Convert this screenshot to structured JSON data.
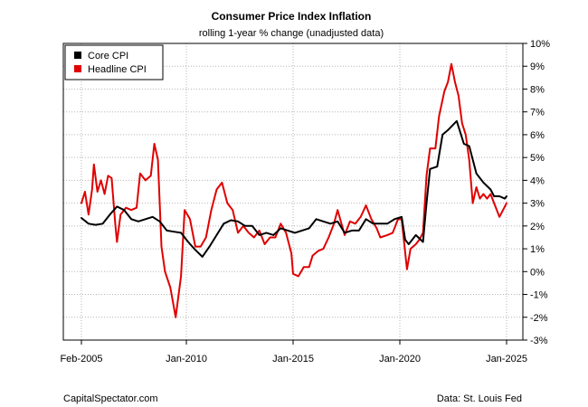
{
  "chart_data": {
    "type": "line",
    "title": "Consumer Price Index Inflation",
    "subtitle": "rolling 1-year % change (unadjusted data)",
    "xlabel": "",
    "ylabel": "",
    "x_range": [
      "2005-02",
      "2025-01"
    ],
    "ylim": [
      -3,
      10
    ],
    "grid": true,
    "legend_position": "top-left",
    "x_ticks": [
      {
        "date": "2005-02",
        "label": "Feb-2005"
      },
      {
        "date": "2010-01",
        "label": "Jan-2010"
      },
      {
        "date": "2015-01",
        "label": "Jan-2015"
      },
      {
        "date": "2020-01",
        "label": "Jan-2020"
      },
      {
        "date": "2025-01",
        "label": "Jan-2025"
      }
    ],
    "y_ticks": [
      {
        "value": -3,
        "label": "-3%"
      },
      {
        "value": -2,
        "label": "-2%"
      },
      {
        "value": -1,
        "label": "-1%"
      },
      {
        "value": 0,
        "label": "0%"
      },
      {
        "value": 1,
        "label": "1%"
      },
      {
        "value": 2,
        "label": "2%"
      },
      {
        "value": 3,
        "label": "3%"
      },
      {
        "value": 4,
        "label": "4%"
      },
      {
        "value": 5,
        "label": "5%"
      },
      {
        "value": 6,
        "label": "6%"
      },
      {
        "value": 7,
        "label": "7%"
      },
      {
        "value": 8,
        "label": "8%"
      },
      {
        "value": 9,
        "label": "9%"
      },
      {
        "value": 10,
        "label": "10%"
      }
    ],
    "series": [
      {
        "name": "Core CPI",
        "color": "#000000",
        "points": [
          [
            "2005-02",
            2.35
          ],
          [
            "2005-06",
            2.1
          ],
          [
            "2005-10",
            2.05
          ],
          [
            "2006-02",
            2.1
          ],
          [
            "2006-06",
            2.5
          ],
          [
            "2006-10",
            2.85
          ],
          [
            "2007-02",
            2.7
          ],
          [
            "2007-06",
            2.3
          ],
          [
            "2007-10",
            2.2
          ],
          [
            "2008-02",
            2.3
          ],
          [
            "2008-06",
            2.4
          ],
          [
            "2008-10",
            2.2
          ],
          [
            "2009-02",
            1.8
          ],
          [
            "2009-06",
            1.75
          ],
          [
            "2009-10",
            1.7
          ],
          [
            "2010-02",
            1.3
          ],
          [
            "2010-06",
            0.95
          ],
          [
            "2010-10",
            0.65
          ],
          [
            "2011-02",
            1.1
          ],
          [
            "2011-06",
            1.6
          ],
          [
            "2011-10",
            2.1
          ],
          [
            "2012-02",
            2.25
          ],
          [
            "2012-06",
            2.2
          ],
          [
            "2012-10",
            2.0
          ],
          [
            "2013-02",
            2.0
          ],
          [
            "2013-06",
            1.6
          ],
          [
            "2013-10",
            1.7
          ],
          [
            "2014-02",
            1.6
          ],
          [
            "2014-06",
            1.9
          ],
          [
            "2014-10",
            1.8
          ],
          [
            "2015-02",
            1.7
          ],
          [
            "2015-06",
            1.8
          ],
          [
            "2015-10",
            1.9
          ],
          [
            "2016-02",
            2.3
          ],
          [
            "2016-06",
            2.2
          ],
          [
            "2016-10",
            2.1
          ],
          [
            "2017-02",
            2.2
          ],
          [
            "2017-06",
            1.7
          ],
          [
            "2017-10",
            1.8
          ],
          [
            "2018-02",
            1.8
          ],
          [
            "2018-06",
            2.3
          ],
          [
            "2018-10",
            2.1
          ],
          [
            "2019-02",
            2.1
          ],
          [
            "2019-06",
            2.1
          ],
          [
            "2019-10",
            2.3
          ],
          [
            "2020-02",
            2.4
          ],
          [
            "2020-04",
            1.4
          ],
          [
            "2020-06",
            1.2
          ],
          [
            "2020-10",
            1.6
          ],
          [
            "2021-02",
            1.3
          ],
          [
            "2021-04",
            3.0
          ],
          [
            "2021-06",
            4.5
          ],
          [
            "2021-10",
            4.6
          ],
          [
            "2022-01",
            6.0
          ],
          [
            "2022-04",
            6.2
          ],
          [
            "2022-09",
            6.6
          ],
          [
            "2023-01",
            5.6
          ],
          [
            "2023-04",
            5.5
          ],
          [
            "2023-08",
            4.3
          ],
          [
            "2023-12",
            3.9
          ],
          [
            "2024-04",
            3.6
          ],
          [
            "2024-06",
            3.3
          ],
          [
            "2024-09",
            3.3
          ],
          [
            "2024-12",
            3.2
          ],
          [
            "2025-01",
            3.3
          ]
        ]
      },
      {
        "name": "Headline CPI",
        "color": "#e00000",
        "points": [
          [
            "2005-02",
            3.0
          ],
          [
            "2005-04",
            3.5
          ],
          [
            "2005-06",
            2.5
          ],
          [
            "2005-08",
            3.6
          ],
          [
            "2005-09",
            4.7
          ],
          [
            "2005-11",
            3.5
          ],
          [
            "2006-01",
            4.0
          ],
          [
            "2006-03",
            3.4
          ],
          [
            "2006-05",
            4.2
          ],
          [
            "2006-07",
            4.1
          ],
          [
            "2006-09",
            2.1
          ],
          [
            "2006-10",
            1.3
          ],
          [
            "2006-12",
            2.5
          ],
          [
            "2007-03",
            2.8
          ],
          [
            "2007-06",
            2.7
          ],
          [
            "2007-09",
            2.8
          ],
          [
            "2007-11",
            4.3
          ],
          [
            "2008-02",
            4.0
          ],
          [
            "2008-05",
            4.2
          ],
          [
            "2008-07",
            5.6
          ],
          [
            "2008-09",
            4.9
          ],
          [
            "2008-11",
            1.1
          ],
          [
            "2009-01",
            0.0
          ],
          [
            "2009-04",
            -0.7
          ],
          [
            "2009-07",
            -2.0
          ],
          [
            "2009-10",
            -0.2
          ],
          [
            "2009-12",
            2.7
          ],
          [
            "2010-03",
            2.3
          ],
          [
            "2010-06",
            1.1
          ],
          [
            "2010-09",
            1.1
          ],
          [
            "2010-12",
            1.5
          ],
          [
            "2011-03",
            2.7
          ],
          [
            "2011-06",
            3.6
          ],
          [
            "2011-09",
            3.9
          ],
          [
            "2011-12",
            3.0
          ],
          [
            "2012-03",
            2.7
          ],
          [
            "2012-06",
            1.7
          ],
          [
            "2012-09",
            2.0
          ],
          [
            "2012-12",
            1.7
          ],
          [
            "2013-03",
            1.5
          ],
          [
            "2013-06",
            1.8
          ],
          [
            "2013-09",
            1.2
          ],
          [
            "2013-12",
            1.5
          ],
          [
            "2014-03",
            1.5
          ],
          [
            "2014-06",
            2.1
          ],
          [
            "2014-09",
            1.7
          ],
          [
            "2014-12",
            0.8
          ],
          [
            "2015-01",
            -0.1
          ],
          [
            "2015-04",
            -0.2
          ],
          [
            "2015-07",
            0.2
          ],
          [
            "2015-10",
            0.2
          ],
          [
            "2015-12",
            0.7
          ],
          [
            "2016-03",
            0.9
          ],
          [
            "2016-06",
            1.0
          ],
          [
            "2016-09",
            1.5
          ],
          [
            "2016-12",
            2.1
          ],
          [
            "2017-02",
            2.7
          ],
          [
            "2017-06",
            1.6
          ],
          [
            "2017-09",
            2.2
          ],
          [
            "2017-12",
            2.1
          ],
          [
            "2018-03",
            2.4
          ],
          [
            "2018-06",
            2.9
          ],
          [
            "2018-09",
            2.3
          ],
          [
            "2018-12",
            1.9
          ],
          [
            "2019-02",
            1.5
          ],
          [
            "2019-06",
            1.6
          ],
          [
            "2019-09",
            1.7
          ],
          [
            "2019-12",
            2.3
          ],
          [
            "2020-02",
            2.3
          ],
          [
            "2020-05",
            0.1
          ],
          [
            "2020-07",
            1.0
          ],
          [
            "2020-10",
            1.2
          ],
          [
            "2020-12",
            1.4
          ],
          [
            "2021-02",
            1.7
          ],
          [
            "2021-04",
            4.2
          ],
          [
            "2021-06",
            5.4
          ],
          [
            "2021-09",
            5.4
          ],
          [
            "2021-11",
            6.8
          ],
          [
            "2022-02",
            7.9
          ],
          [
            "2022-04",
            8.3
          ],
          [
            "2022-06",
            9.1
          ],
          [
            "2022-08",
            8.3
          ],
          [
            "2022-10",
            7.7
          ],
          [
            "2022-12",
            6.5
          ],
          [
            "2023-02",
            6.0
          ],
          [
            "2023-04",
            4.9
          ],
          [
            "2023-06",
            3.0
          ],
          [
            "2023-08",
            3.7
          ],
          [
            "2023-10",
            3.2
          ],
          [
            "2023-12",
            3.4
          ],
          [
            "2024-02",
            3.2
          ],
          [
            "2024-04",
            3.4
          ],
          [
            "2024-06",
            3.0
          ],
          [
            "2024-09",
            2.4
          ],
          [
            "2024-11",
            2.7
          ],
          [
            "2025-01",
            3.0
          ]
        ]
      }
    ]
  },
  "footer": {
    "left": "CapitalSpectator.com",
    "right": "Data: St. Louis Fed"
  }
}
